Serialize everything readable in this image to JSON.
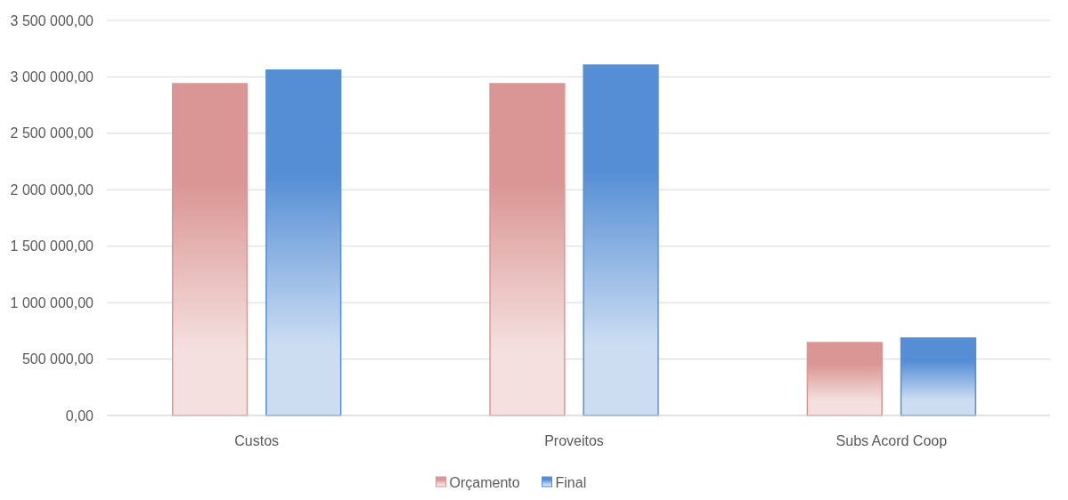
{
  "chart_data": {
    "type": "bar",
    "categories": [
      "Custos",
      "Proveitos",
      "Subs Acord Coop"
    ],
    "series": [
      {
        "name": "Orçamento",
        "color": "#da9694",
        "values": [
          2940000,
          2940000,
          646000
        ]
      },
      {
        "name": "Final",
        "color": "#558ed5",
        "values": [
          3060000,
          3105000,
          686000
        ]
      }
    ],
    "ylim": [
      0,
      3500000
    ],
    "yticks": [
      {
        "value": 0,
        "label": "0,00"
      },
      {
        "value": 500000,
        "label": "500 000,00"
      },
      {
        "value": 1000000,
        "label": "1 000 000,00"
      },
      {
        "value": 1500000,
        "label": "1 500 000,00"
      },
      {
        "value": 2000000,
        "label": "2 000 000,00"
      },
      {
        "value": 2500000,
        "label": "2 500 000,00"
      },
      {
        "value": 3000000,
        "label": "3 000 000,00"
      },
      {
        "value": 3500000,
        "label": "3 500 000,00"
      }
    ],
    "grid": "y",
    "legend": "bottom"
  }
}
